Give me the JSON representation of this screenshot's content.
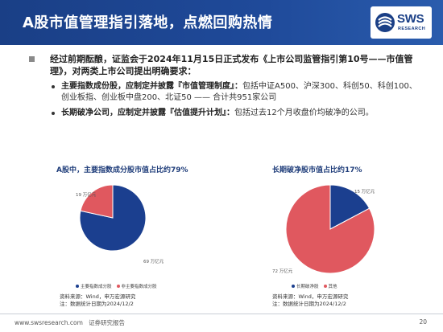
{
  "header": {
    "title": "A股市值管理指引落地，点燃回购热情",
    "logo_text": "SWS",
    "logo_sub": "RESEARCH"
  },
  "bullets": {
    "main": "经过前期酝酿，证监会于2024年11月15日正式发布《上市公司监管指引第10号——市值管理》，对两类上市公司提出明确要求：",
    "sub": [
      {
        "strong": "主要指数成份股，应制定并披露『市值管理制度』：",
        "text": "包括中证A500、沪深300、科创50、科创100、创业板指、创业板中盘200、北证50 —— 合计共951家公司"
      },
      {
        "strong": "长期破净公司，应制定并披露『估值提升计划』：",
        "text": "包括过去12个月收盘价均破净的公司。"
      }
    ]
  },
  "chart_data": [
    {
      "type": "pie",
      "title": "A股中，主要指数成分股市值占比约79%",
      "slices": [
        {
          "name": "主要指数成分股",
          "value": 69,
          "label": "69 万亿元",
          "color": "#1b3f8f"
        },
        {
          "name": "非主要指数成分股",
          "value": 19,
          "label": "19 万亿元",
          "color": "#e0585f"
        }
      ],
      "source": "资料来源：Wind，申万宏源研究",
      "note": "注：数据统计日期为2024/12/2"
    },
    {
      "type": "pie",
      "title": "长期破净股市值占比约17%",
      "slices": [
        {
          "name": "长期破净股",
          "value": 15,
          "label": "15 万亿元",
          "color": "#1b3f8f"
        },
        {
          "name": "其他",
          "value": 72,
          "label": "72 万亿元",
          "color": "#e0585f"
        }
      ],
      "source": "资料来源：Wind，申万宏源研究",
      "note": "注：数据统计日期为2024/12/2"
    }
  ],
  "footer": {
    "website": "www.swsresearch.com",
    "report_type": "证券研究报告",
    "page": "20"
  }
}
